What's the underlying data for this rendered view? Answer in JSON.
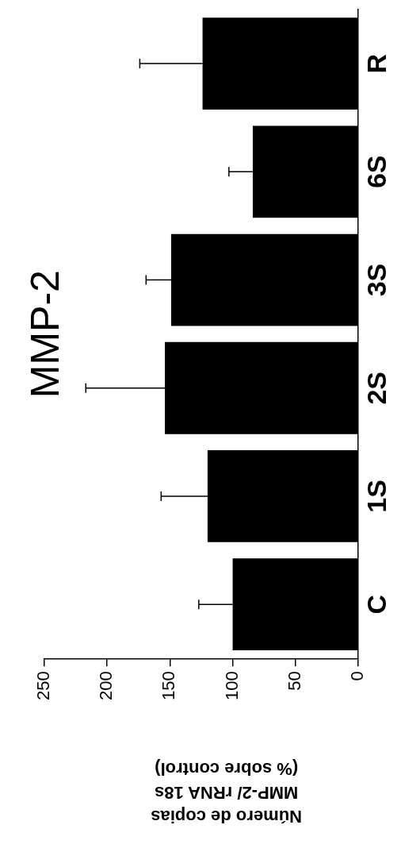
{
  "chart_data": {
    "type": "bar",
    "orientation": "horizontal",
    "title": "MMP-2",
    "xlabel": "Número de copias\nMMP-2/ rRNA 18s\n(% sobre control)",
    "categories": [
      "R",
      "6S",
      "3S",
      "2S",
      "1S",
      "C"
    ],
    "values": [
      124,
      84,
      149,
      154,
      120,
      100
    ],
    "errors": [
      [
        124,
        174
      ],
      [
        84,
        103
      ],
      [
        149,
        169
      ],
      [
        154,
        217
      ],
      [
        120,
        157
      ],
      [
        100,
        127
      ]
    ],
    "color": "#000000",
    "xlim": [
      250,
      0
    ],
    "xticks": [
      0,
      50,
      100,
      150,
      200,
      250
    ],
    "legend": false,
    "grid": false
  }
}
